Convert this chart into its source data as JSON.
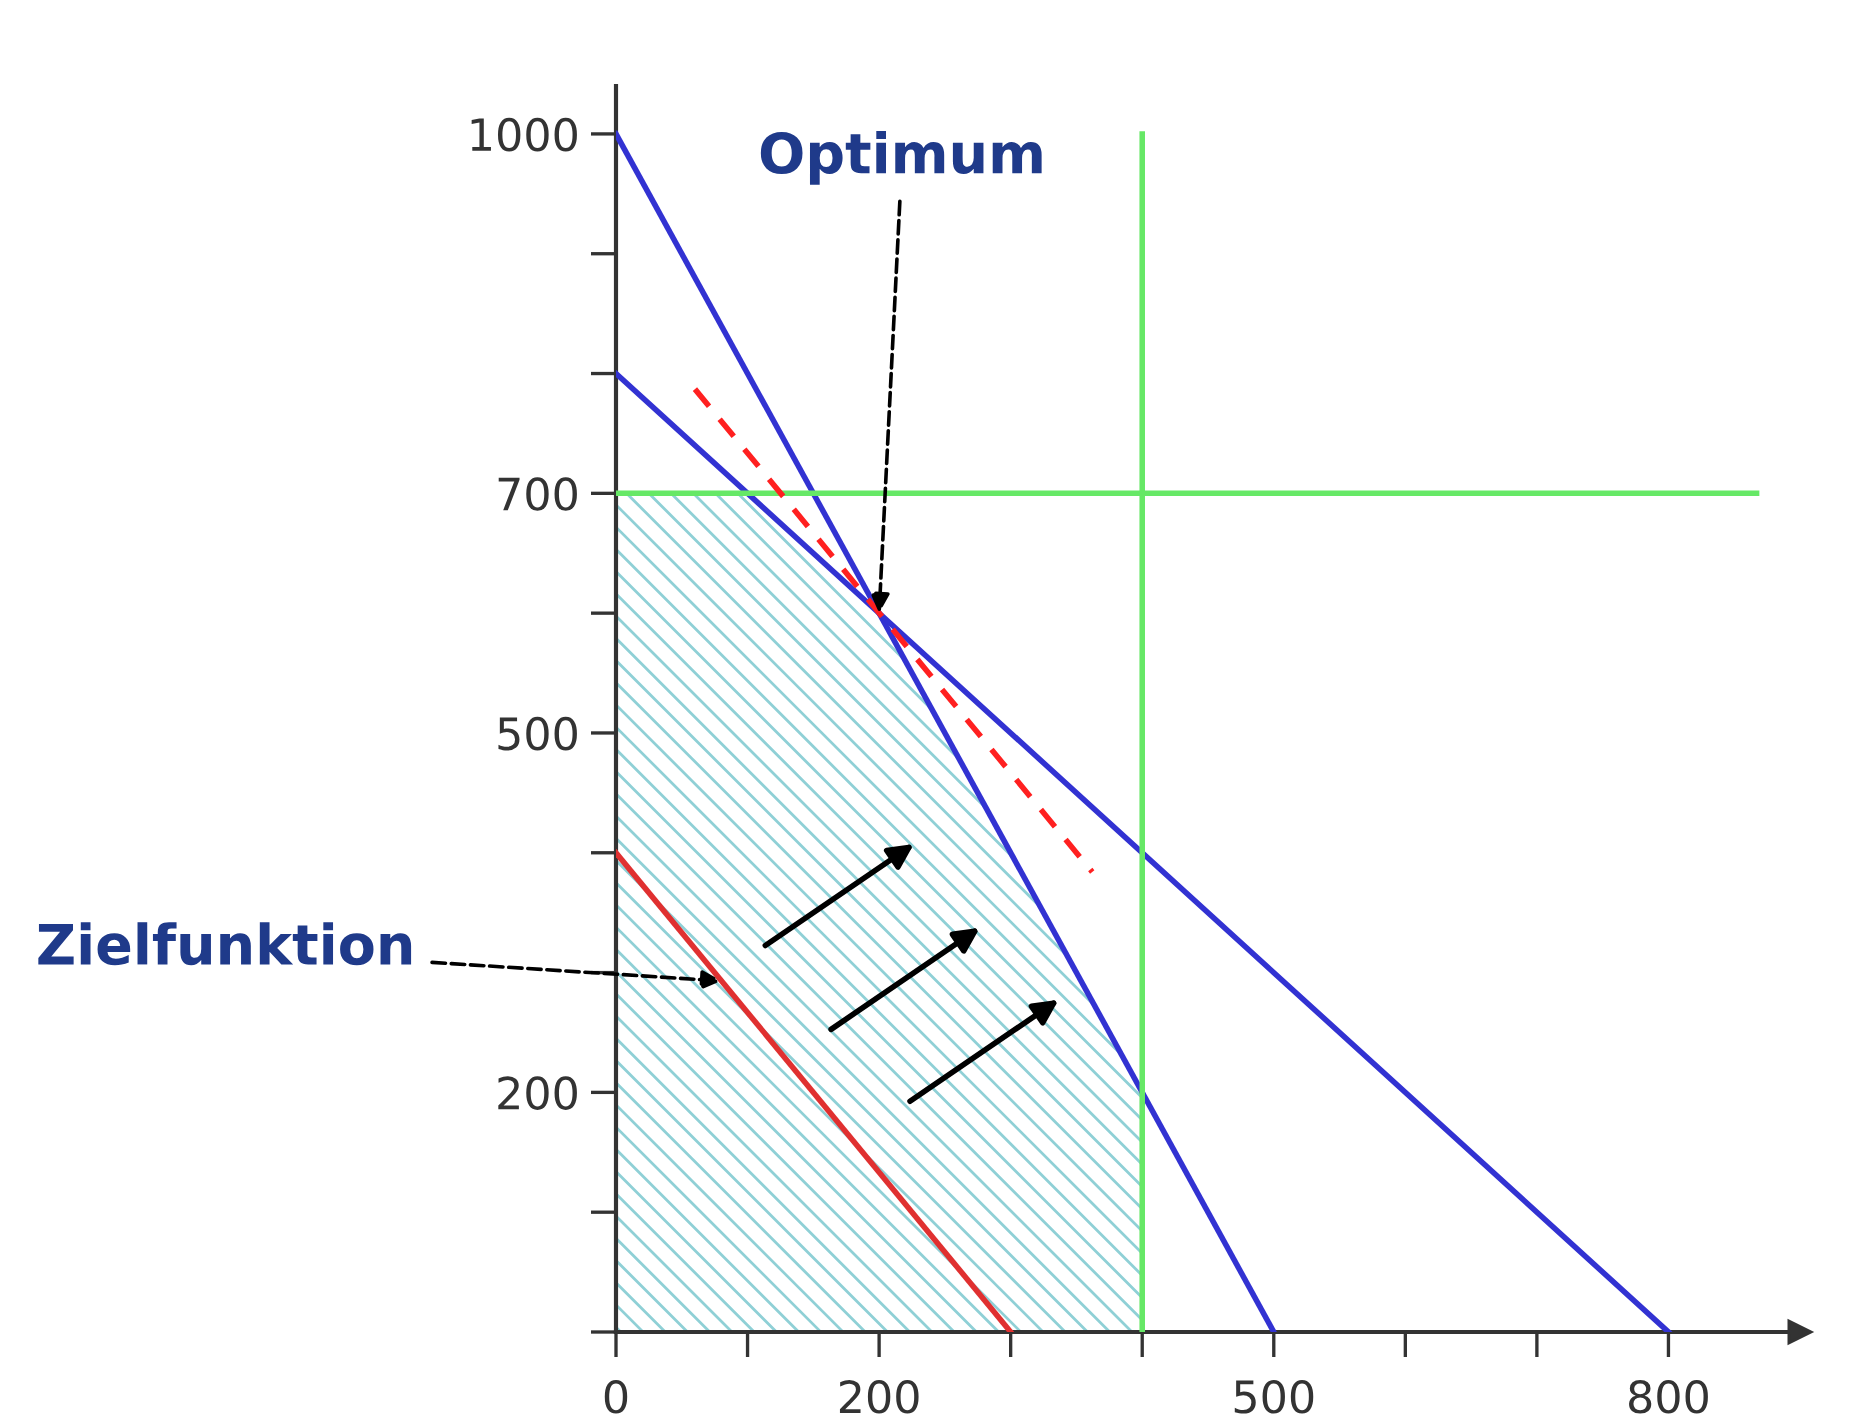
{
  "chart_data": {
    "type": "line",
    "xlim": [
      0,
      900
    ],
    "ylim": [
      0,
      1040
    ],
    "xticks": [
      0,
      {
        "value": 100,
        "label": null
      },
      200,
      {
        "value": 300,
        "label": null
      },
      {
        "value": 400,
        "label": null
      },
      500,
      {
        "value": 600,
        "label": null
      },
      {
        "value": 700,
        "label": null
      },
      800
    ],
    "yticks": [
      {
        "value": 0,
        "label": null
      },
      {
        "value": 100,
        "label": null
      },
      200,
      {
        "value": 300,
        "label": null
      },
      {
        "value": 400,
        "label": null
      },
      500,
      {
        "value": 600,
        "label": null
      },
      700,
      {
        "value": 800,
        "label": null
      },
      {
        "value": 900,
        "label": null
      },
      1000
    ],
    "grid": false,
    "legend": false,
    "marker": "none",
    "series": [
      {
        "type": "area",
        "color": "#8fd0d6",
        "x": [
          0,
          100,
          200,
          400
        ],
        "values": [
          700,
          700,
          600,
          200
        ]
      },
      {
        "color": "#3232d2",
        "x": [
          0,
          500
        ],
        "values": [
          1000,
          0
        ]
      },
      {
        "color": "#3232d2",
        "x": [
          0,
          800
        ],
        "values": [
          800,
          0
        ]
      },
      {
        "color": "#66e866",
        "x": [
          400,
          400
        ],
        "values": [
          0,
          1000
        ]
      },
      {
        "color": "#66e866",
        "x": [
          0,
          867
        ],
        "values": [
          700,
          700
        ]
      },
      {
        "color": "#e03030",
        "x": [
          0,
          300
        ],
        "values": [
          400,
          0
        ]
      },
      {
        "color": "#ff2020",
        "line_style": "dashed",
        "x": [
          60,
          362
        ],
        "values": [
          787,
          384
        ]
      }
    ],
    "annotations": [
      {
        "text": "Optimum",
        "x": 200,
        "y": 600
      },
      {
        "text": "Zielfunktion",
        "x": 80,
        "y": 293
      }
    ]
  }
}
